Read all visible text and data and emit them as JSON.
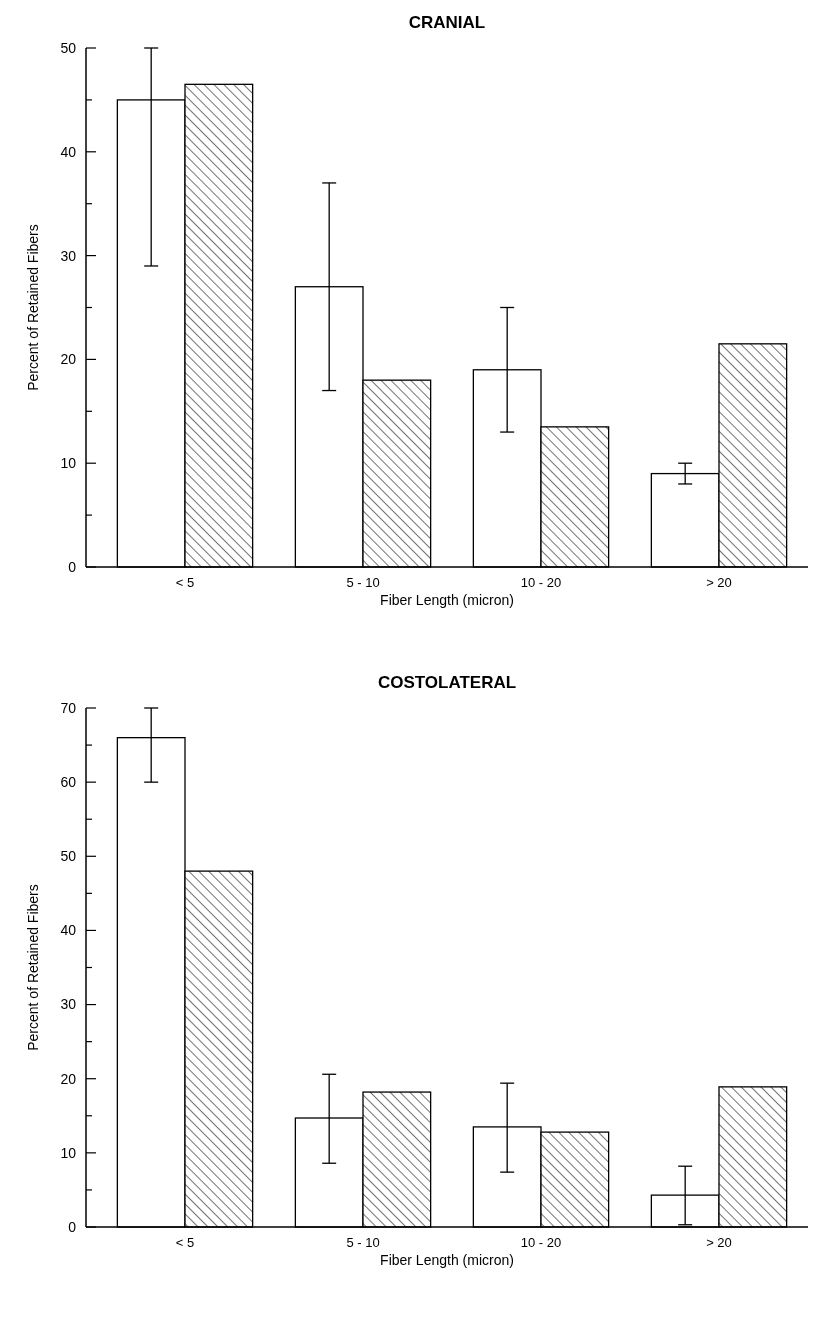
{
  "chart_data": [
    {
      "type": "bar",
      "title": "CRANIAL",
      "xlabel": "Fiber Length (micron)",
      "ylabel": "Percent of Retained Fibers",
      "categories": [
        "< 5",
        "5 - 10",
        "10 - 20",
        "> 20"
      ],
      "series": [
        {
          "color": "#ffffff",
          "values": [
            45,
            27,
            19,
            9
          ],
          "errors": [
            [
              29,
              50
            ],
            [
              17,
              37
            ],
            [
              13,
              25
            ],
            [
              8,
              10
            ]
          ]
        },
        {
          "color": "#000000",
          "values": [
            46.5,
            18,
            13.5,
            21.5
          ]
        }
      ],
      "ylim": [
        0,
        50
      ],
      "yticks": [
        0,
        {
          "value": 5,
          "label": null
        },
        10,
        {
          "value": 15,
          "label": null
        },
        20,
        {
          "value": 25,
          "label": null
        },
        30,
        {
          "value": 35,
          "label": null
        },
        40,
        {
          "value": 45,
          "label": null
        },
        50
      ],
      "grid": false
    },
    {
      "type": "bar",
      "title": "COSTOLATERAL",
      "xlabel": "Fiber Length (micron)",
      "ylabel": "Percent of Retained Fibers",
      "categories": [
        "< 5",
        "5 - 10",
        "10 - 20",
        "> 20"
      ],
      "series": [
        {
          "color": "#ffffff",
          "values": [
            66,
            14.7,
            13.5,
            4.3
          ],
          "errors": [
            [
              60,
              70
            ],
            [
              8.6,
              20.6
            ],
            [
              7.4,
              19.4
            ],
            [
              0.3,
              8.2
            ]
          ]
        },
        {
          "color": "#000000",
          "values": [
            48,
            18.2,
            12.8,
            18.9
          ]
        }
      ],
      "ylim": [
        0,
        70
      ],
      "yticks": [
        0,
        {
          "value": 5,
          "label": null
        },
        10,
        {
          "value": 15,
          "label": null
        },
        20,
        {
          "value": 25,
          "label": null
        },
        30,
        {
          "value": 35,
          "label": null
        },
        40,
        {
          "value": 45,
          "label": null
        },
        50,
        {
          "value": 55,
          "label": null
        },
        60,
        {
          "value": 65,
          "label": null
        },
        70
      ],
      "grid": false
    }
  ]
}
